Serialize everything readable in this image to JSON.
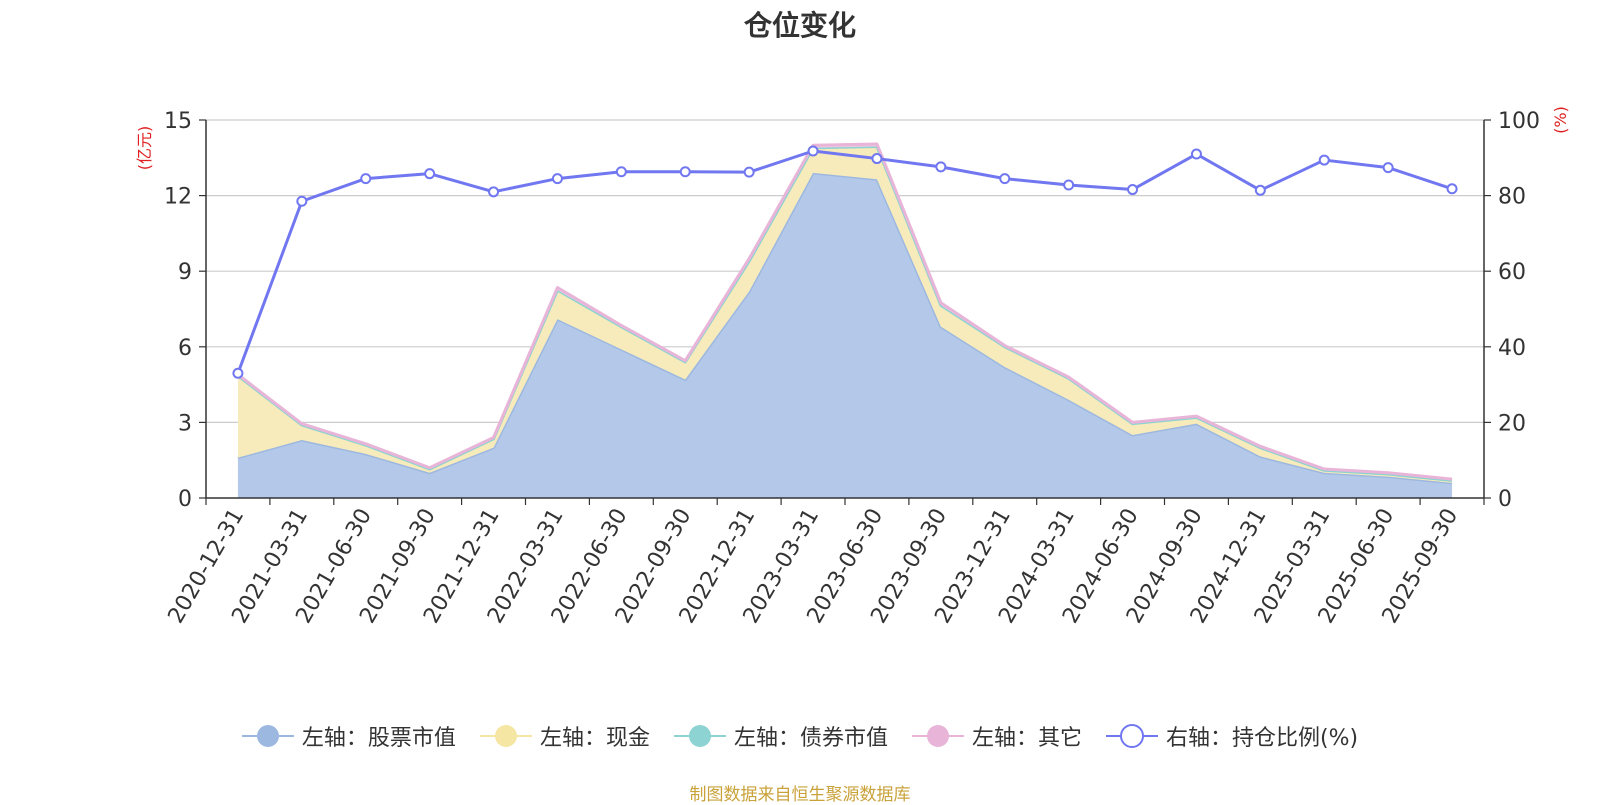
{
  "chart_data": {
    "type": "area",
    "title": "仓位变化",
    "left_axis": {
      "unit_label": "(亿元)",
      "ticks": [
        "0",
        "3",
        "6",
        "9",
        "12",
        "15"
      ],
      "range": [
        0,
        15
      ]
    },
    "right_axis": {
      "unit_label": "(%)",
      "ticks": [
        "0",
        "20",
        "40",
        "60",
        "80",
        "100"
      ],
      "range": [
        0,
        100
      ]
    },
    "categories": [
      "2020-12-31",
      "2021-03-31",
      "2021-06-30",
      "2021-09-30",
      "2021-12-31",
      "2022-03-31",
      "2022-06-30",
      "2022-09-30",
      "2022-12-31",
      "2023-03-31",
      "2023-06-30",
      "2023-09-30",
      "2023-12-31",
      "2024-03-31",
      "2024-06-30",
      "2024-09-30",
      "2024-12-31",
      "2025-03-31",
      "2025-06-30",
      "2025-09-30"
    ],
    "series": [
      {
        "name": "左轴：股票市值",
        "axis": "left",
        "kind": "stacked-area",
        "color": "#9db8e0",
        "fill": "#b4c9e9",
        "values": [
          1.6,
          2.3,
          1.75,
          1.0,
          2.0,
          7.1,
          5.9,
          4.7,
          8.2,
          12.9,
          12.65,
          6.8,
          5.2,
          3.9,
          2.5,
          2.95,
          1.65,
          1.0,
          0.85,
          0.6
        ]
      },
      {
        "name": "左轴：现金",
        "axis": "left",
        "kind": "stacked-area",
        "color": "#f5e6a3",
        "fill": "#f8ebbb",
        "values": [
          3.25,
          0.6,
          0.35,
          0.15,
          0.35,
          1.15,
          0.9,
          0.7,
          1.2,
          1.0,
          1.3,
          0.85,
          0.8,
          0.85,
          0.45,
          0.25,
          0.35,
          0.1,
          0.1,
          0.1
        ]
      },
      {
        "name": "左轴：债券市值",
        "axis": "left",
        "kind": "stacked-area",
        "color": "#8dd3d3",
        "fill": "#a9dede",
        "values": [
          0,
          0,
          0,
          0,
          0,
          0,
          0,
          0,
          0,
          0,
          0,
          0,
          0,
          0,
          0,
          0,
          0,
          0,
          0,
          0
        ]
      },
      {
        "name": "左轴：其它",
        "axis": "left",
        "kind": "stacked-area",
        "color": "#e8b4d8",
        "fill": "#efc9e3",
        "values": [
          0.05,
          0.05,
          0.05,
          0.05,
          0.05,
          0.1,
          0.05,
          0.05,
          0.1,
          0.1,
          0.1,
          0.1,
          0.05,
          0.05,
          0.05,
          0.05,
          0.05,
          0.05,
          0.05,
          0.05
        ]
      },
      {
        "name": "右轴：持仓比例(%)",
        "axis": "right",
        "kind": "line",
        "color": "#7177f0",
        "values": [
          33,
          78.5,
          84.5,
          85.8,
          81,
          84.5,
          86.3,
          86.3,
          86.2,
          91.8,
          89.8,
          87.6,
          84.5,
          82.8,
          81.6,
          91,
          81.4,
          89.4,
          87.4,
          81.8
        ]
      }
    ]
  },
  "footer": {
    "source": "制图数据来自恒生聚源数据库"
  }
}
